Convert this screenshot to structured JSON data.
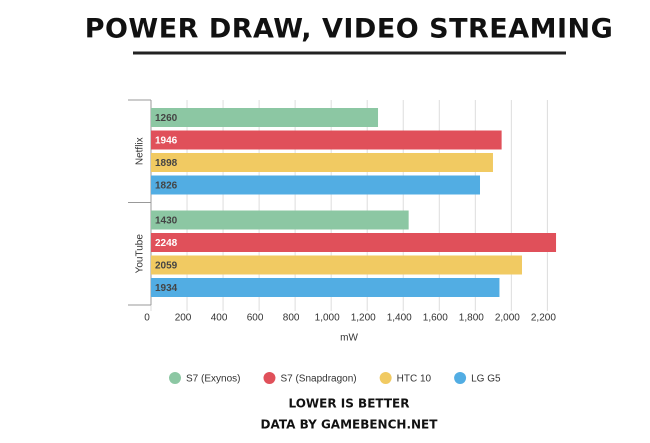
{
  "chart_data": {
    "type": "hbar",
    "title": "POWER DRAW, VIDEO STREAMING",
    "subtitle": "LOWER IS BETTER",
    "source": "DATA BY GAMEBENCH.NET",
    "x_label": "mW",
    "categories": [
      "Netflix",
      "YouTube"
    ],
    "series": [
      {
        "name": "S7 (Exynos)",
        "color": "#8cc7a3",
        "values": [
          1260,
          1430
        ]
      },
      {
        "name": "S7 (Snapdragon)",
        "color": "#e0505a",
        "values": [
          1946,
          2248
        ]
      },
      {
        "name": "HTC 10",
        "color": "#f1ca62",
        "values": [
          1898,
          2059
        ]
      },
      {
        "name": "LG G5",
        "color": "#52ade3",
        "values": [
          1826,
          1934
        ]
      }
    ],
    "xlim": [
      0,
      2270
    ],
    "xticks": [
      0,
      200,
      400,
      600,
      800,
      {
        "value": 1000,
        "label": "1,000"
      },
      {
        "value": 1200,
        "label": "1,200"
      },
      {
        "value": 1400,
        "label": "1,400"
      },
      {
        "value": 1600,
        "label": "1,600"
      },
      {
        "value": 1800,
        "label": "1,800"
      },
      {
        "value": 2000,
        "label": "2,000"
      },
      {
        "value": 2200,
        "label": "2,200"
      }
    ],
    "grid": true,
    "legend": "bottom"
  }
}
